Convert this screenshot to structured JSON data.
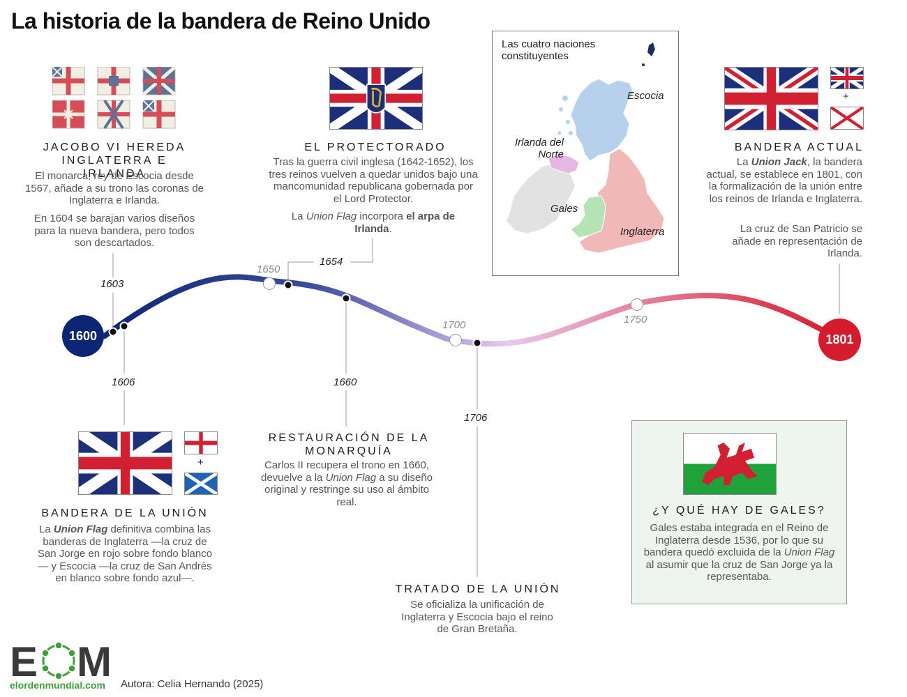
{
  "title": "La historia de la bandera de Reino Unido",
  "timeline": {
    "start_year": "1600",
    "end_year": "1801",
    "ticks": [
      "1650",
      "1700",
      "1750"
    ],
    "colors": {
      "start": "#0d2673",
      "end": "#d41c2c",
      "mid": "#e6c5ea"
    }
  },
  "events": {
    "e1603": {
      "year": "1603",
      "heading": "JACOBO VI HEREDA INGLATERRA E IRLANDA",
      "p1": "El monarca, rey de Escocia desde 1567, añade a su trono las coronas de Inglaterra e Irlanda.",
      "p2": "En 1604 se barajan varios diseños para la nueva bandera, pero todos son descartados."
    },
    "e1654": {
      "year": "1654",
      "heading": "EL PROTECTORADO",
      "p1": "Tras la guerra civil inglesa (1642-1652), los tres reinos vuelven a quedar unidos bajo una mancomunidad republicana gobernada por el Lord Protector.",
      "p2_a": "La ",
      "p2_em": "Union Flag",
      "p2_b": " incorpora ",
      "p2_strong": "el arpa de Irlanda",
      "p2_c": "."
    },
    "e1801": {
      "heading": "BANDERA ACTUAL",
      "p1_a": "La ",
      "p1_em": "Union Jack",
      "p1_b": ", la bandera actual, se establece en 1801, con la formalización de la unión entre los reinos de Irlanda e Inglaterra.",
      "p2": "La cruz de San Patricio se añade en representación de Irlanda."
    },
    "e1606": {
      "year": "1606",
      "heading": "BANDERA DE LA UNIÓN",
      "p_a": "La ",
      "p_em": "Union Flag",
      "p_b": " definitiva combina las banderas de Inglaterra —la cruz de San Jorge en rojo sobre fondo blanco— y Escocia —la cruz de San Andrés en blanco sobre fondo azul—."
    },
    "e1660": {
      "year": "1660",
      "heading": "RESTAURACIÓN DE LA MONARQUÍA",
      "p_a": "Carlos II recupera el trono en 1660, devuelve a la ",
      "p_em": "Union Flag",
      "p_b": " a su diseño original y restringe su uso al ámbito real."
    },
    "e1706": {
      "year": "1706",
      "heading": "TRATADO DE LA UNIÓN",
      "p": "Se oficializa la unificación de Inglaterra y Escocia bajo el reino de Gran Bretaña."
    }
  },
  "map": {
    "title": "Las cuatro naciones constituyentes",
    "labels": {
      "scotland": "Escocia",
      "ni": "Irlanda del Norte",
      "wales": "Gales",
      "england": "Inglaterra"
    },
    "colors": {
      "scotland": "#b7d0ec",
      "ni": "#e6b6e4",
      "wales": "#b5e3b5",
      "england": "#f1b8b8",
      "ireland": "#e2e2e2"
    }
  },
  "wales": {
    "heading": "¿Y QUÉ HAY DE GALES?",
    "p_a": "Gales estaba integrada en el Reino de Inglaterra desde 1536, por lo que su bandera quedó excluida de la ",
    "p_em": "Union Flag",
    "p_b": " al asumir que la cruz de San Jorge ya la representaba."
  },
  "plus_sign": "+",
  "footer": {
    "logo_text": "EOM",
    "site": "elordenmundial.com",
    "author": "Autora: Celia Hernando (2025)"
  }
}
